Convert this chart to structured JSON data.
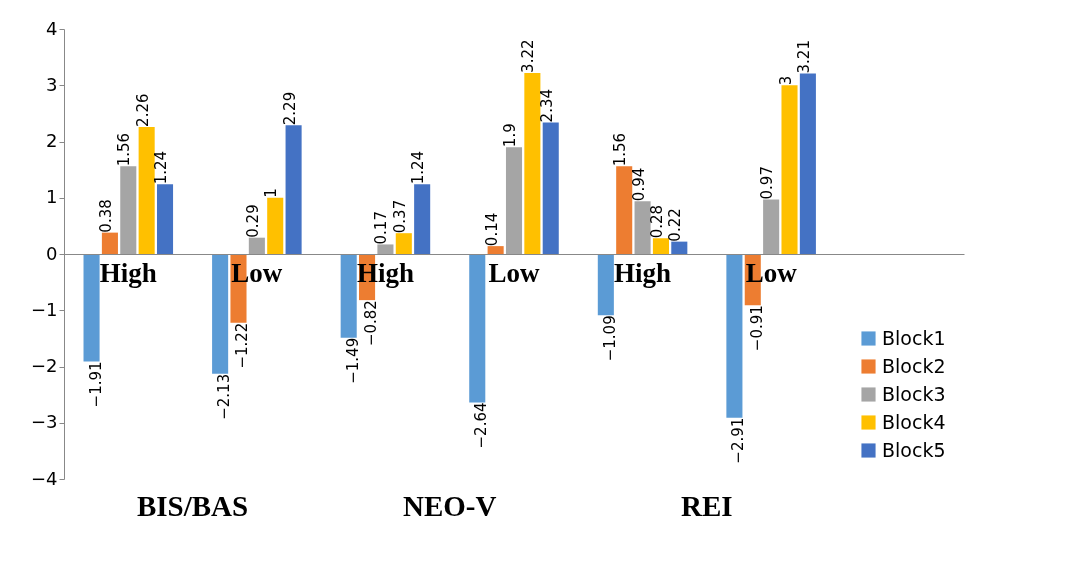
{
  "chart_data": {
    "type": "bar",
    "categories": [
      "High",
      "Low",
      "High",
      "Low",
      "High",
      "Low",
      null
    ],
    "series": [
      {
        "name": "Block1",
        "color": "#5b9bd5",
        "values": [
          -1.91,
          -2.13,
          -1.49,
          -2.64,
          -1.09,
          -2.91,
          null
        ]
      },
      {
        "name": "Block2",
        "color": "#ed7d31",
        "values": [
          0.38,
          -1.22,
          -0.82,
          0.14,
          1.56,
          -0.91,
          null
        ]
      },
      {
        "name": "Block3",
        "color": "#a5a5a5",
        "values": [
          1.56,
          0.29,
          0.17,
          1.9,
          0.94,
          0.97,
          null
        ]
      },
      {
        "name": "Block4",
        "color": "#ffc000",
        "values": [
          2.26,
          1,
          0.37,
          3.22,
          0.28,
          3,
          null
        ]
      },
      {
        "name": "Block5",
        "color": "#4472c4",
        "values": [
          1.24,
          2.29,
          1.24,
          2.34,
          0.22,
          3.21,
          null
        ]
      }
    ],
    "annotations": [
      "BIS/BAS",
      "NEO-V",
      "REI"
    ],
    "ylim": [
      -4,
      4
    ],
    "yticks": [
      -4,
      -3,
      -2,
      -1,
      0,
      1,
      2,
      3,
      4
    ],
    "grid": false,
    "legend": "bottom right",
    "data_labels": true
  }
}
